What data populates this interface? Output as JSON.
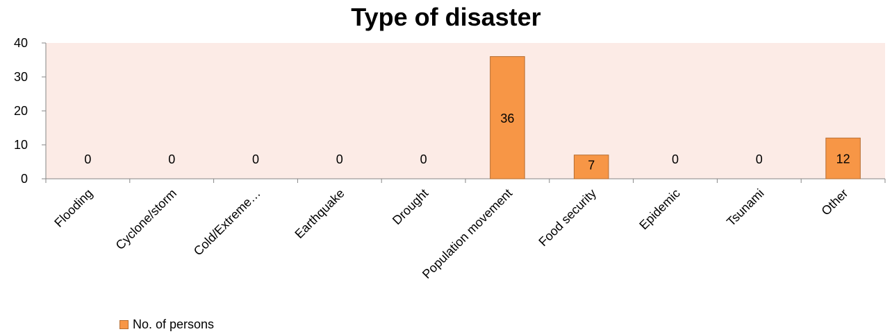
{
  "chart_data": {
    "type": "bar",
    "title": "Type of disaster",
    "categories": [
      "Flooding",
      "Cyclone/storm",
      "Cold/Extreme…",
      "Earthquake",
      "Drought",
      "Population movement",
      "Food security",
      "Epidemic",
      "Tsunami",
      "Other"
    ],
    "series": [
      {
        "name": "No. of persons",
        "values": [
          0,
          0,
          0,
          0,
          0,
          36,
          7,
          0,
          0,
          12
        ]
      }
    ],
    "data_labels": [
      "0",
      "0",
      "0",
      "0",
      "0",
      "36",
      "7",
      "0",
      "0",
      "12"
    ],
    "yticks": [
      "0",
      "10",
      "20",
      "30",
      "40"
    ],
    "ylim": [
      0,
      40
    ],
    "grid": false,
    "legend_position": "bottom-left",
    "colors": {
      "bar_fill": "#f79646",
      "bar_stroke": "#b66d31",
      "plot_background": "#fcebe6",
      "axis": "#868686"
    }
  }
}
